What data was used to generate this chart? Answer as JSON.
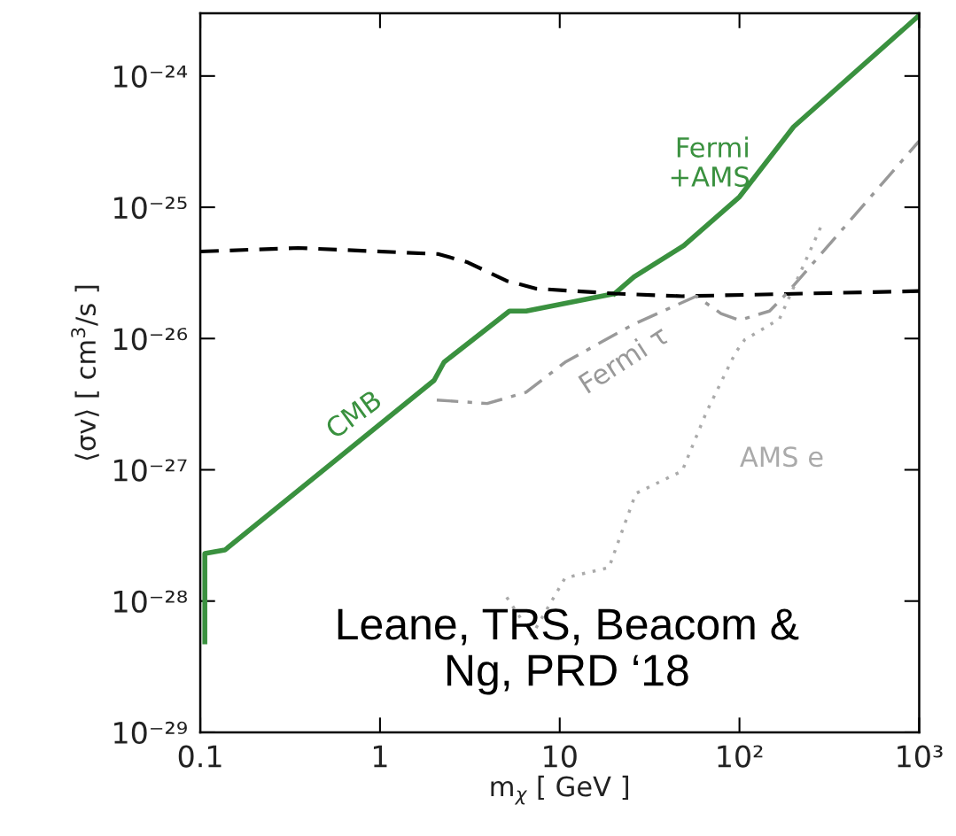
{
  "chart_data": {
    "type": "line",
    "xlabel": "m$_{χ}$ [ GeV ]",
    "ylabel": "⟨σv⟩ [ cm$^{3}$/s ]",
    "log": "xy",
    "grid": false,
    "xlim": [
      0.1,
      1000
    ],
    "ylim": [
      1e-29,
      3e-24
    ],
    "xticks": [
      0.1,
      1,
      10,
      {
        "value": 100,
        "label": "10²"
      },
      {
        "value": 1000,
        "label": "10³"
      }
    ],
    "yticks": [
      {
        "value": 1e-29,
        "label": "10⁻²⁹"
      },
      {
        "value": 1e-28,
        "label": "10⁻²⁸"
      },
      {
        "value": 1e-27,
        "label": "10⁻²⁷"
      },
      {
        "value": 1e-26,
        "label": "10⁻²⁶"
      },
      {
        "value": 1e-25,
        "label": "10⁻²⁵"
      },
      {
        "value": 1e-24,
        "label": "10⁻²⁴"
      }
    ],
    "series": [
      {
        "color": "#3a913f",
        "line_style": "solid",
        "x": [
          0.106,
          0.106,
          0.137,
          2.0,
          2.27,
          5.25,
          6.5,
          20.2
        ],
        "values": [
          4.9e-29,
          2.3e-28,
          2.45e-28,
          4.8e-27,
          6.6e-27,
          1.62e-26,
          1.62e-26,
          2.2e-26
        ]
      },
      {
        "color": "#3a913f",
        "line_style": "solid",
        "x": [
          20.2,
          25.9,
          49,
          100,
          200,
          1000
        ],
        "values": [
          2.2e-26,
          2.95e-26,
          5.1e-26,
          1.2e-25,
          4.1e-25,
          2.9e-24
        ]
      },
      {
        "color": "#000000",
        "line_style": "dashed",
        "x": [
          0.1,
          0.35,
          2.12,
          3.08,
          5.07,
          7.4,
          20.2,
          48,
          1000
        ],
        "values": [
          4.6e-26,
          4.9e-26,
          4.4e-26,
          3.8e-26,
          2.75e-26,
          2.4e-26,
          2.2e-26,
          2.1e-26,
          2.3e-26
        ]
      },
      {
        "color": "#999999",
        "line_style": "dashdot",
        "x": [
          2.07,
          3.95,
          6.5,
          10.7,
          25.9,
          57.5,
          79,
          100,
          147,
          183,
          1000
        ],
        "values": [
          3.4e-27,
          3.2e-27,
          3.9e-27,
          6.6e-27,
          1.29e-26,
          2.1e-26,
          1.55e-26,
          1.38e-26,
          1.62e-26,
          2.2e-26,
          3.2e-25
        ]
      },
      {
        "color": "#aaaaaa",
        "line_style": "dotted",
        "x": [
          5.07,
          7.0,
          10.7,
          18.8,
          21.4,
          26.5,
          48,
          65.5,
          95,
          107,
          167,
          200,
          285
        ],
        "values": [
          1.07e-28,
          5.5e-29,
          1.5e-28,
          1.8e-28,
          2.95e-28,
          6.6e-28,
          9.8e-28,
          2.75e-27,
          7.8e-27,
          9.8e-27,
          1.41e-26,
          2.45e-26,
          7.2e-26
        ]
      }
    ],
    "annotations": [
      "CMB",
      "Fermi\n+AMS",
      "Fermi τ",
      "AMS e",
      "Leane, TRS, Beacom &\nNg, PRD ‘18"
    ]
  }
}
